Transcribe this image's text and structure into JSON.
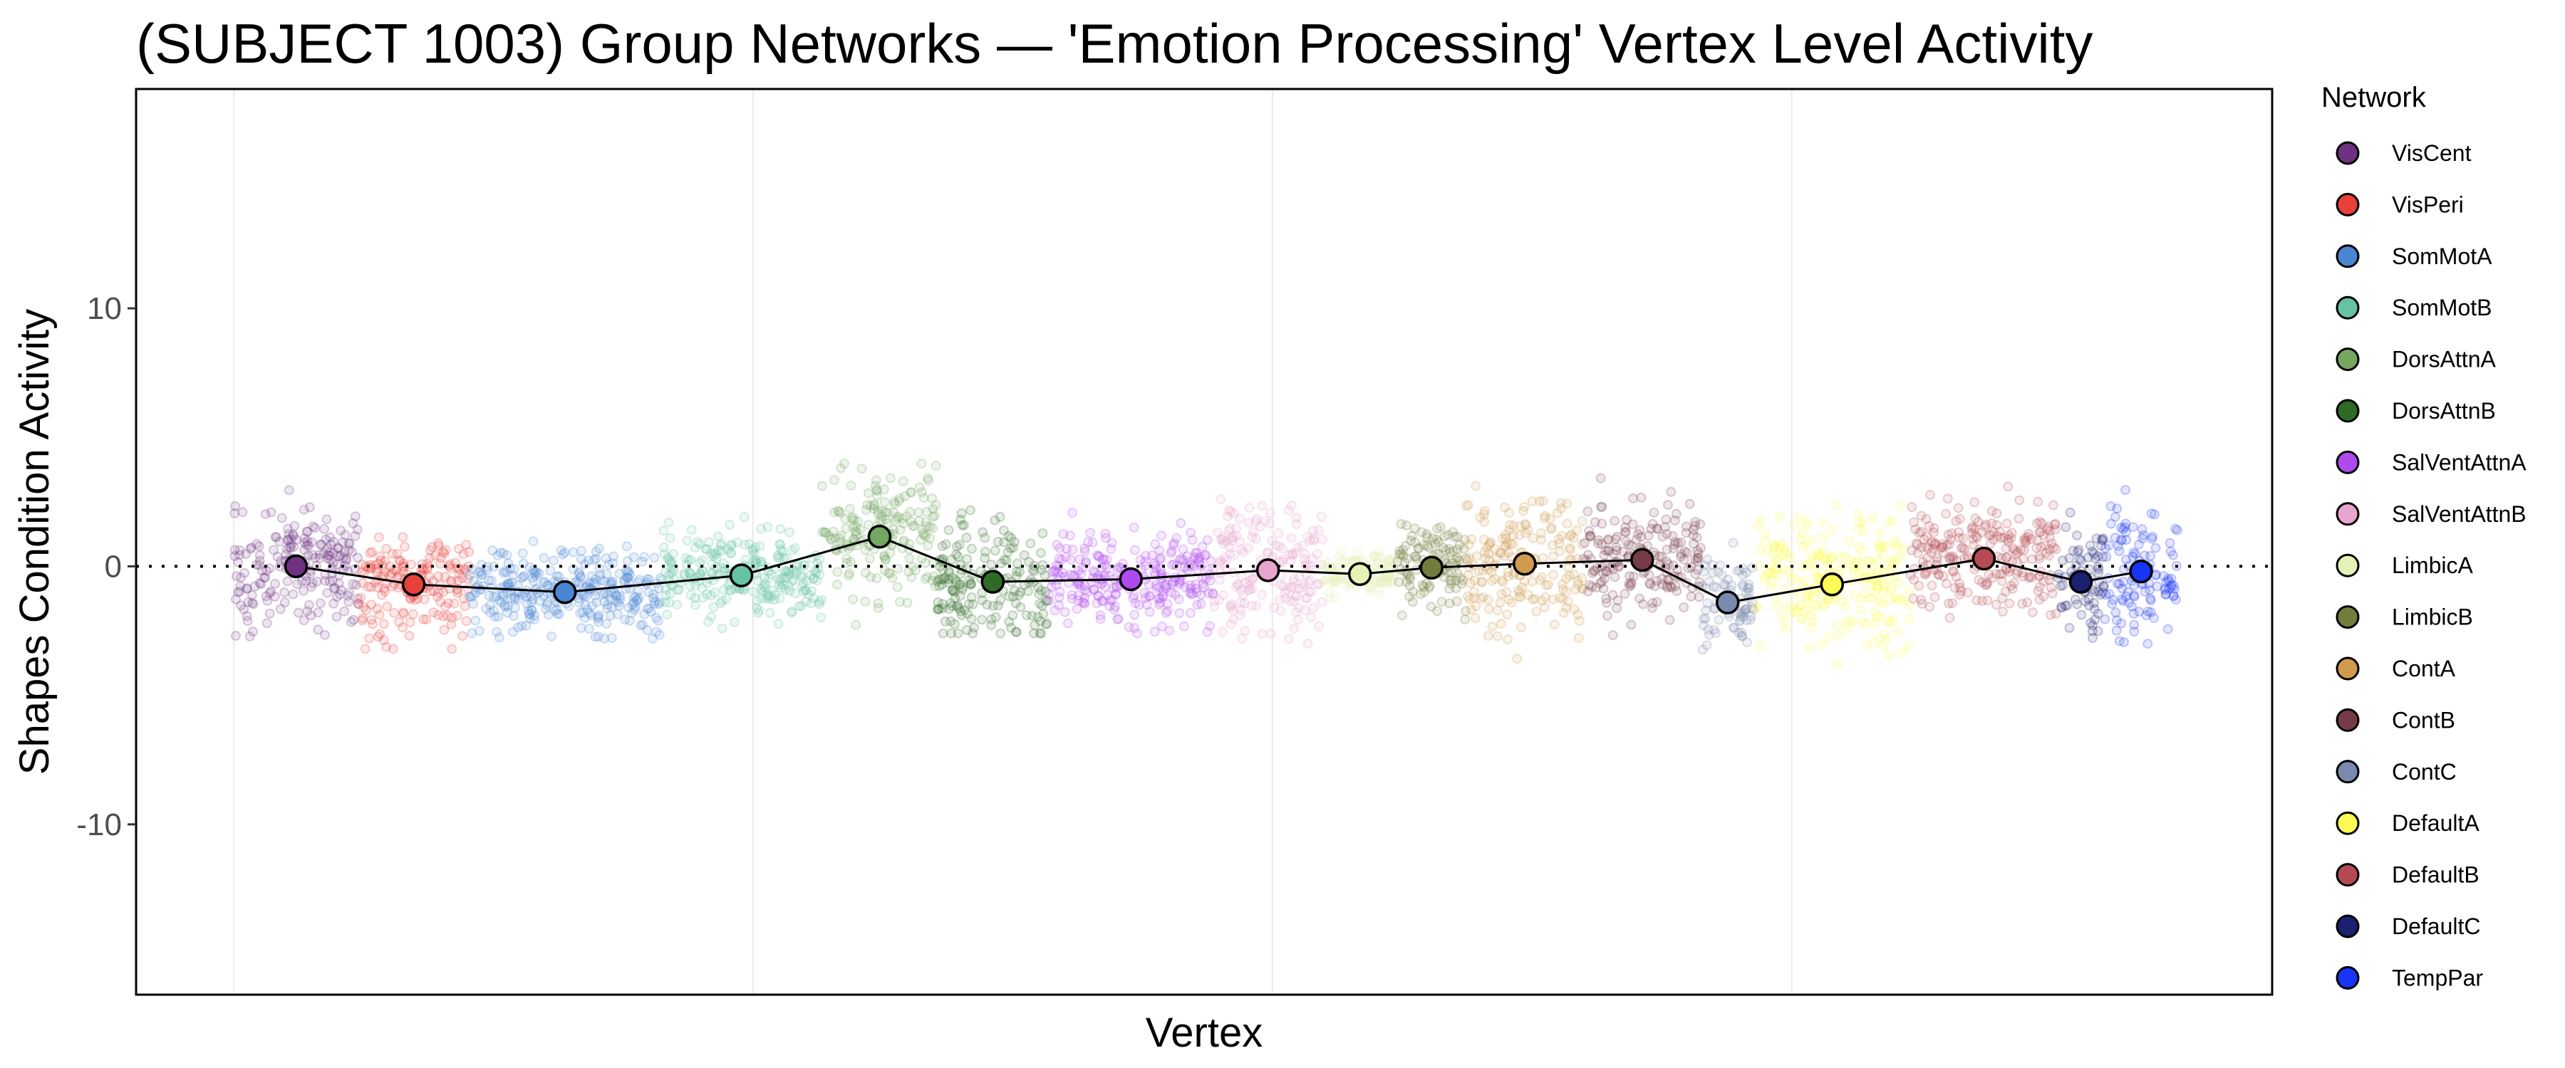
{
  "chart_data": {
    "type": "scatter",
    "title": "(SUBJECT 1003) Group Networks — 'Emotion Processing' Vertex Level Activity",
    "xlabel": "Vertex",
    "ylabel": "Shapes Condition Activity",
    "ylim": [
      -16.6,
      18.5
    ],
    "xlim": [
      -1880,
      39250
    ],
    "y_ticks": [
      10,
      0,
      -10
    ],
    "y_tick_labels": [
      "10",
      "0",
      "-10"
    ],
    "x_gridlines": [
      0,
      10000,
      20000,
      30000
    ],
    "reference_line_y": 0,
    "grid": "vertical major lines only",
    "legend": {
      "title": "Network",
      "placement": "right"
    },
    "series": [
      {
        "name": "VisCent",
        "color": "#6e3281",
        "vertex_range": [
          0,
          2400
        ],
        "mean": 0.0,
        "value_range": [
          -3.8,
          3.6
        ]
      },
      {
        "name": "VisPeri",
        "color": "#e8413a",
        "vertex_range": [
          2400,
          4530
        ],
        "mean": -0.7,
        "value_range": [
          -3.2,
          3.0
        ]
      },
      {
        "name": "SomMotA",
        "color": "#4a86d4",
        "vertex_range": [
          4530,
          8220
        ],
        "mean": -1.0,
        "value_range": [
          -2.8,
          2.3
        ]
      },
      {
        "name": "SomMotB",
        "color": "#66c2a5",
        "vertex_range": [
          8220,
          11330
        ],
        "mean": -0.35,
        "value_range": [
          -2.8,
          2.4
        ]
      },
      {
        "name": "DorsAttnA",
        "color": "#74a860",
        "vertex_range": [
          11330,
          13540
        ],
        "mean": 1.15,
        "value_range": [
          -2.5,
          5.0
        ]
      },
      {
        "name": "DorsAttnB",
        "color": "#2e6b27",
        "vertex_range": [
          13540,
          15690
        ],
        "mean": -0.6,
        "value_range": [
          -2.6,
          4.6
        ]
      },
      {
        "name": "SalVentAttnA",
        "color": "#b04aee",
        "vertex_range": [
          15690,
          18860
        ],
        "mean": -0.5,
        "value_range": [
          -2.6,
          3.0
        ]
      },
      {
        "name": "SalVentAttnB",
        "color": "#e8a5cf",
        "vertex_range": [
          18860,
          20970
        ],
        "mean": -0.15,
        "value_range": [
          -4.2,
          4.3
        ]
      },
      {
        "name": "LimbicA",
        "color": "#e5f2b5",
        "vertex_range": [
          20970,
          22400
        ],
        "mean": -0.3,
        "value_range": [
          -1.5,
          1.0
        ]
      },
      {
        "name": "LimbicB",
        "color": "#737d3b",
        "vertex_range": [
          22400,
          23730
        ],
        "mean": -0.05,
        "value_range": [
          -2.5,
          2.8
        ]
      },
      {
        "name": "ContA",
        "color": "#d09b4f",
        "vertex_range": [
          23730,
          25980
        ],
        "mean": 0.1,
        "value_range": [
          -3.8,
          4.8
        ]
      },
      {
        "name": "ContB",
        "color": "#773b47",
        "vertex_range": [
          25980,
          28260
        ],
        "mean": 0.25,
        "value_range": [
          -3.2,
          3.9
        ]
      },
      {
        "name": "ContC",
        "color": "#7a8aae",
        "vertex_range": [
          28260,
          29270
        ],
        "mean": -1.4,
        "value_range": [
          -3.8,
          1.6
        ]
      },
      {
        "name": "DefaultA",
        "color": "#fdfc56",
        "vertex_range": [
          29270,
          32280
        ],
        "mean": -0.7,
        "value_range": [
          -4.0,
          3.8
        ]
      },
      {
        "name": "DefaultB",
        "color": "#b54a55",
        "vertex_range": [
          32280,
          35120
        ],
        "mean": 0.3,
        "value_range": [
          -3.2,
          3.8
        ]
      },
      {
        "name": "DefaultC",
        "color": "#1c2070",
        "vertex_range": [
          35120,
          36010
        ],
        "mean": -0.6,
        "value_range": [
          -4.2,
          3.0
        ]
      },
      {
        "name": "TempPar",
        "color": "#1834f4",
        "vertex_range": [
          36010,
          37440
        ],
        "mean": -0.2,
        "value_range": [
          -3.0,
          4.8
        ]
      }
    ]
  }
}
